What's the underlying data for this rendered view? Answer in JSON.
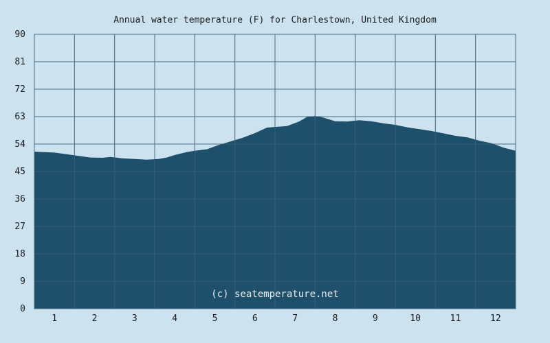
{
  "chart_data": {
    "type": "area",
    "title": "Annual water temperature (F) for Charlestown, United Kingdom",
    "xlabel": "",
    "ylabel": "",
    "x_tick_labels": [
      "1",
      "2",
      "3",
      "4",
      "5",
      "6",
      "7",
      "8",
      "9",
      "10",
      "11",
      "12"
    ],
    "y_tick_labels": [
      "0",
      "9",
      "18",
      "27",
      "36",
      "45",
      "54",
      "63",
      "72",
      "81",
      "90"
    ],
    "ylim": [
      0,
      90
    ],
    "xlim": [
      0.5,
      12.5
    ],
    "grid": true,
    "watermark": "(c) seatemperature.net",
    "colors": {
      "background": "#cce3ef",
      "fill": "#1e4f6b",
      "grid": "#4a6e86"
    },
    "series": [
      {
        "x": [
          0.5,
          0.7,
          1.0,
          1.3,
          1.6,
          1.9,
          2.2,
          2.4,
          2.7,
          3.0,
          3.3,
          3.6,
          3.8,
          4.0,
          4.3,
          4.5,
          4.8,
          5.1,
          5.4,
          5.7,
          6.0,
          6.3,
          6.5,
          6.8,
          7.1,
          7.3,
          7.5,
          7.7,
          8.0,
          8.3,
          8.6,
          8.9,
          9.2,
          9.5,
          9.8,
          10.1,
          10.4,
          10.7,
          11.0,
          11.3,
          11.6,
          11.9,
          12.2,
          12.5
        ],
        "values": [
          51.5,
          51.4,
          51.2,
          50.7,
          50.1,
          49.6,
          49.5,
          49.8,
          49.3,
          49.1,
          48.9,
          49.1,
          49.6,
          50.4,
          51.4,
          51.8,
          52.3,
          53.7,
          54.9,
          56.1,
          57.6,
          59.4,
          59.6,
          59.9,
          61.4,
          62.9,
          63.2,
          62.7,
          61.5,
          61.4,
          61.8,
          61.5,
          60.8,
          60.3,
          59.5,
          58.9,
          58.3,
          57.5,
          56.7,
          56.2,
          55.1,
          54.3,
          52.8,
          51.8
        ]
      }
    ]
  }
}
